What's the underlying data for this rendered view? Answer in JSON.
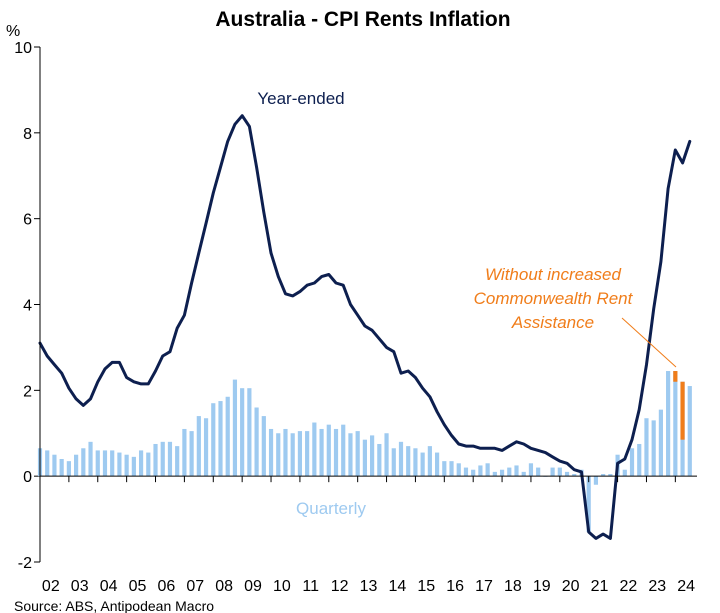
{
  "chart_data": {
    "type": "bar+line",
    "title": "Australia - CPI Rents Inflation",
    "ylabel": "%",
    "ylim": [
      -2,
      10
    ],
    "yticks": [
      -2,
      0,
      2,
      4,
      6,
      8,
      10
    ],
    "x_labels": [
      "02",
      "03",
      "04",
      "05",
      "06",
      "07",
      "08",
      "09",
      "10",
      "11",
      "12",
      "13",
      "14",
      "15",
      "16",
      "17",
      "18",
      "19",
      "20",
      "21",
      "22",
      "23",
      "24"
    ],
    "x_range": [
      2002.0,
      2024.75
    ],
    "colors": {
      "year_ended": "#0d1f4f",
      "quarterly": "#9ecaf0",
      "without_cra": "#f07d1a",
      "axis": "#000000"
    },
    "series": [
      {
        "name": "Year-ended",
        "type": "line",
        "x": [
          2002.0,
          2002.25,
          2002.5,
          2002.75,
          2003.0,
          2003.25,
          2003.5,
          2003.75,
          2004.0,
          2004.25,
          2004.5,
          2004.75,
          2005.0,
          2005.25,
          2005.5,
          2005.75,
          2006.0,
          2006.25,
          2006.5,
          2006.75,
          2007.0,
          2007.25,
          2007.5,
          2007.75,
          2008.0,
          2008.25,
          2008.5,
          2008.75,
          2009.0,
          2009.25,
          2009.5,
          2009.75,
          2010.0,
          2010.25,
          2010.5,
          2010.75,
          2011.0,
          2011.25,
          2011.5,
          2011.75,
          2012.0,
          2012.25,
          2012.5,
          2012.75,
          2013.0,
          2013.25,
          2013.5,
          2013.75,
          2014.0,
          2014.25,
          2014.5,
          2014.75,
          2015.0,
          2015.25,
          2015.5,
          2015.75,
          2016.0,
          2016.25,
          2016.5,
          2016.75,
          2017.0,
          2017.25,
          2017.5,
          2017.75,
          2018.0,
          2018.25,
          2018.5,
          2018.75,
          2019.0,
          2019.25,
          2019.5,
          2019.75,
          2020.0,
          2020.25,
          2020.5,
          2020.75,
          2021.0,
          2021.25,
          2021.5,
          2021.75,
          2022.0,
          2022.25,
          2022.5,
          2022.75,
          2023.0,
          2023.25,
          2023.5,
          2023.75,
          2024.0,
          2024.25,
          2024.5
        ],
        "values": [
          3.1,
          2.8,
          2.6,
          2.4,
          2.05,
          1.8,
          1.65,
          1.8,
          2.2,
          2.5,
          2.65,
          2.65,
          2.3,
          2.2,
          2.15,
          2.15,
          2.45,
          2.8,
          2.9,
          3.45,
          3.75,
          4.5,
          5.2,
          5.9,
          6.6,
          7.2,
          7.8,
          8.2,
          8.4,
          8.15,
          7.2,
          6.15,
          5.2,
          4.65,
          4.25,
          4.2,
          4.3,
          4.45,
          4.5,
          4.65,
          4.7,
          4.5,
          4.45,
          4.0,
          3.75,
          3.5,
          3.4,
          3.2,
          3.0,
          2.9,
          2.4,
          2.45,
          2.3,
          2.05,
          1.85,
          1.5,
          1.2,
          0.95,
          0.75,
          0.7,
          0.7,
          0.65,
          0.65,
          0.65,
          0.6,
          0.7,
          0.8,
          0.75,
          0.65,
          0.6,
          0.55,
          0.45,
          0.35,
          0.3,
          0.15,
          0.1,
          -1.3,
          -1.45,
          -1.35,
          -1.45,
          0.3,
          0.4,
          0.85,
          1.55,
          2.6,
          3.9,
          5.0,
          6.7,
          7.6,
          7.3,
          7.8
        ]
      },
      {
        "name": "Quarterly",
        "type": "bar",
        "x": [
          2002.0,
          2002.25,
          2002.5,
          2002.75,
          2003.0,
          2003.25,
          2003.5,
          2003.75,
          2004.0,
          2004.25,
          2004.5,
          2004.75,
          2005.0,
          2005.25,
          2005.5,
          2005.75,
          2006.0,
          2006.25,
          2006.5,
          2006.75,
          2007.0,
          2007.25,
          2007.5,
          2007.75,
          2008.0,
          2008.25,
          2008.5,
          2008.75,
          2009.0,
          2009.25,
          2009.5,
          2009.75,
          2010.0,
          2010.25,
          2010.5,
          2010.75,
          2011.0,
          2011.25,
          2011.5,
          2011.75,
          2012.0,
          2012.25,
          2012.5,
          2012.75,
          2013.0,
          2013.25,
          2013.5,
          2013.75,
          2014.0,
          2014.25,
          2014.5,
          2014.75,
          2015.0,
          2015.25,
          2015.5,
          2015.75,
          2016.0,
          2016.25,
          2016.5,
          2016.75,
          2017.0,
          2017.25,
          2017.5,
          2017.75,
          2018.0,
          2018.25,
          2018.5,
          2018.75,
          2019.0,
          2019.25,
          2019.5,
          2019.75,
          2020.0,
          2020.25,
          2020.5,
          2020.75,
          2021.0,
          2021.25,
          2021.5,
          2021.75,
          2022.0,
          2022.25,
          2022.5,
          2022.75,
          2023.0,
          2023.25,
          2023.5,
          2023.75,
          2024.0,
          2024.25,
          2024.5
        ],
        "values": [
          0.65,
          0.6,
          0.5,
          0.4,
          0.35,
          0.5,
          0.65,
          0.8,
          0.6,
          0.6,
          0.6,
          0.55,
          0.5,
          0.45,
          0.6,
          0.55,
          0.75,
          0.8,
          0.8,
          0.7,
          1.1,
          1.05,
          1.4,
          1.35,
          1.7,
          1.75,
          1.85,
          2.25,
          2.05,
          2.05,
          1.6,
          1.4,
          1.1,
          1.0,
          1.1,
          1.0,
          1.05,
          1.05,
          1.25,
          1.1,
          1.2,
          1.1,
          1.2,
          1.0,
          1.05,
          0.85,
          0.95,
          0.75,
          1.0,
          0.65,
          0.8,
          0.7,
          0.65,
          0.55,
          0.7,
          0.55,
          0.35,
          0.35,
          0.3,
          0.2,
          0.15,
          0.25,
          0.3,
          0.1,
          0.15,
          0.2,
          0.25,
          0.1,
          0.3,
          0.2,
          0.0,
          0.2,
          0.2,
          0.1,
          0.05,
          0.15,
          -1.3,
          -0.2,
          0.05,
          0.05,
          0.5,
          0.15,
          0.65,
          0.75,
          1.35,
          1.3,
          1.55,
          2.45,
          2.45,
          2.2,
          2.1
        ]
      },
      {
        "name": "Without increased Commonwealth Rent Assistance",
        "type": "bar-segment",
        "x": [
          2024.0,
          2024.25
        ],
        "from": [
          2.2,
          0.85
        ],
        "to": [
          2.45,
          2.2
        ]
      }
    ],
    "annotations": [
      {
        "text": "Year-ended",
        "series": "Year-ended"
      },
      {
        "text": "Quarterly",
        "series": "Quarterly"
      },
      {
        "lines": [
          "Without increased",
          "Commonwealth Rent",
          "Assistance"
        ],
        "series": "Without increased Commonwealth Rent Assistance",
        "italic": true
      }
    ],
    "grid": false,
    "legend": "none",
    "source": "Source: ABS, Antipodean Macro"
  }
}
